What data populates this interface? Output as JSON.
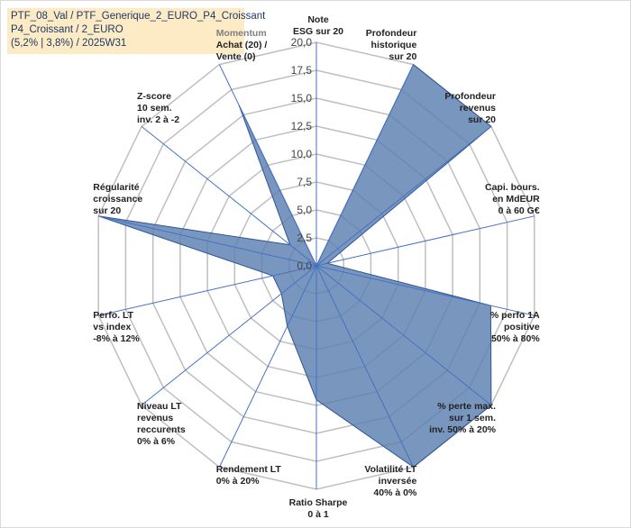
{
  "title_lines": [
    "PTF_08_Val / PTF_Generique_2_EURO_P4_Croissant",
    "P4_Croissant / 2_EURO",
    "(5,2% | 3,8%) / 2025W31"
  ],
  "chart_data": {
    "type": "radar",
    "rmax": 20,
    "ticks": [
      0,
      2.5,
      5,
      7.5,
      10,
      12.5,
      15,
      17.5,
      20
    ],
    "tick_labels": [
      "0,0",
      "2,5",
      "5,0",
      "7,5",
      "10,0",
      "12,5",
      "15,0",
      "17,5",
      "20,0"
    ],
    "axes": [
      {
        "lines": [
          "Note",
          "ESG sur 20"
        ],
        "value": 0,
        "muted": false
      },
      {
        "lines": [
          "Profondeur",
          "historique",
          "sur 20"
        ],
        "value": 20,
        "muted": false
      },
      {
        "lines": [
          "Profondeur",
          "revenus",
          "sur 20"
        ],
        "value": 20,
        "muted": false
      },
      {
        "lines": [
          "Capi. bours.",
          "en MdEUR",
          "0 à 60 G€"
        ],
        "value": 1,
        "muted": false
      },
      {
        "lines": [
          "% perfo 1A",
          "positive",
          "50% à 80%"
        ],
        "value": 16,
        "muted": false
      },
      {
        "lines": [
          "% perte max.",
          "sur 1 sem.",
          "inv. 50% à 20%"
        ],
        "value": 20,
        "muted": false
      },
      {
        "lines": [
          "Volatilité LT",
          "inversée",
          "40% à 0%"
        ],
        "value": 20,
        "muted": false
      },
      {
        "lines": [
          "Ratio Sharpe",
          "0 à 1"
        ],
        "value": 12,
        "muted": false
      },
      {
        "lines": [
          "Rendement LT",
          "0% à 20%"
        ],
        "value": 6,
        "muted": false
      },
      {
        "lines": [
          "Niveau LT",
          "revenus",
          "reccurents",
          "0% à 6%"
        ],
        "value": 4,
        "muted": false
      },
      {
        "lines": [
          "Perfo. LT",
          "vs index",
          "-8% à 12%"
        ],
        "value": 4,
        "muted": false
      },
      {
        "lines": [
          "Régularité",
          "croissance",
          "sur 20"
        ],
        "value": 20,
        "muted": false
      },
      {
        "lines": [
          "Z-score",
          "10 sem.",
          "inv. 2 à -2"
        ],
        "value": 3,
        "muted": false
      },
      {
        "lines": [
          "Momentum",
          "Achat (20) /",
          "Vente (0)"
        ],
        "value": 16,
        "muted": true
      }
    ],
    "colors": {
      "fill": "#5b7fb0",
      "fill_opacity": 0.82,
      "stroke": "#2f5597",
      "grid": "#bfbfbf",
      "spoke": "#4472c4"
    }
  }
}
